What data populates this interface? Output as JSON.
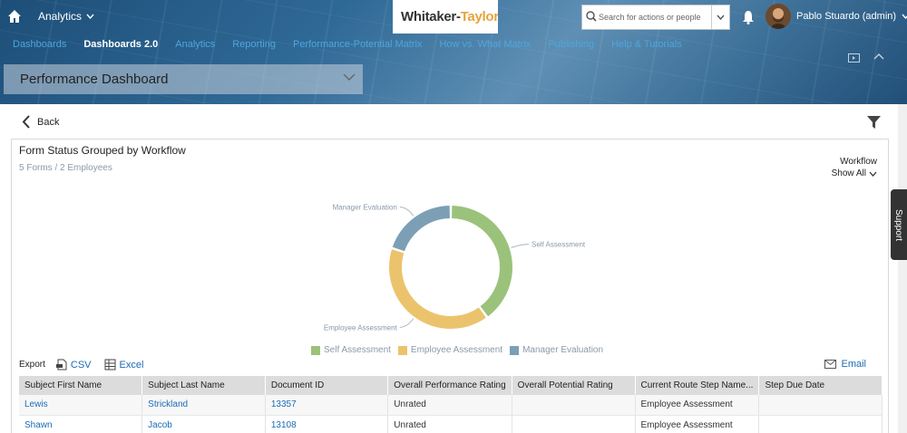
{
  "header": {
    "app_menu_label": "Analytics",
    "logo_text_main": "Whitaker-",
    "logo_text_accent": "Taylor",
    "search_placeholder": "Search for actions or people",
    "user_name": "Pablo Stuardo (admin)"
  },
  "nav": {
    "items": [
      {
        "label": "Dashboards",
        "active": false
      },
      {
        "label": "Dashboards 2.0",
        "active": true
      },
      {
        "label": "Analytics",
        "active": false
      },
      {
        "label": "Reporting",
        "active": false
      },
      {
        "label": "Performance-Potential Matrix",
        "active": false
      },
      {
        "label": "How vs. What Matrix",
        "active": false
      },
      {
        "label": "Publishing",
        "active": false
      },
      {
        "label": "Help & Tutorials",
        "active": false
      }
    ]
  },
  "page": {
    "title": "Performance Dashboard",
    "back_label": "Back"
  },
  "card": {
    "title": "Form Status Grouped by Workflow",
    "subtitle": "5 Forms / 2 Employees",
    "workflow_label": "Workflow",
    "workflow_value": "Show All"
  },
  "chart_data": {
    "type": "pie",
    "donut": true,
    "categories": [
      "Self Assessment",
      "Employee Assessment",
      "Manager Evaluation"
    ],
    "values": [
      2,
      2,
      1
    ],
    "colors": [
      "#9bc27a",
      "#ecc36d",
      "#7c9fb5"
    ],
    "legend_position": "bottom"
  },
  "export": {
    "label": "Export",
    "csv_label": "CSV",
    "excel_label": "Excel",
    "email_label": "Email"
  },
  "table": {
    "columns": [
      "Subject First Name",
      "Subject Last Name",
      "Document ID",
      "Overall Performance Rating",
      "Overall Potential Rating",
      "Current Route Step Name...",
      "Step Due Date"
    ],
    "rows": [
      [
        "Lewis",
        "Strickland",
        "13357",
        "Unrated",
        "",
        "Employee Assessment",
        ""
      ],
      [
        "Shawn",
        "Jacob",
        "13108",
        "Unrated",
        "",
        "Employee Assessment",
        ""
      ]
    ]
  },
  "support_label": "Support"
}
